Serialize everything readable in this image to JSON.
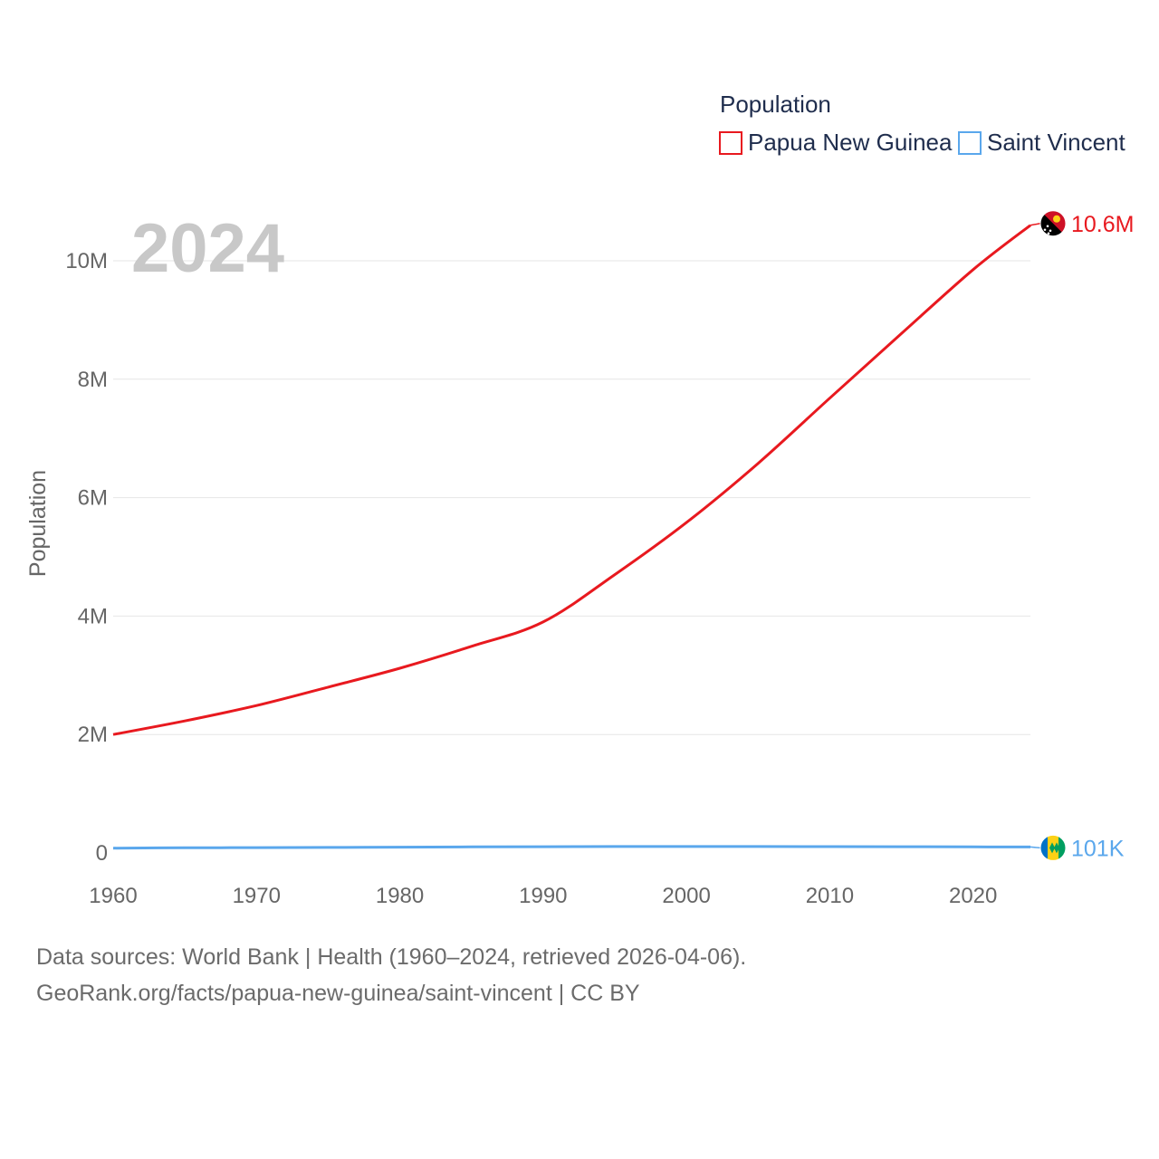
{
  "chart_data": {
    "type": "line",
    "title": "Population",
    "current_year_label": "2024",
    "xlabel": "",
    "ylabel": "Population",
    "xlim": [
      1960,
      2024
    ],
    "ylim": [
      0,
      10000000
    ],
    "x_ticks": [
      1960,
      1970,
      1980,
      1990,
      2000,
      2010,
      2020
    ],
    "x_tick_labels": [
      "1960",
      "1970",
      "1980",
      "1990",
      "2000",
      "2010",
      "2020"
    ],
    "y_ticks": [
      0,
      2000000,
      4000000,
      6000000,
      8000000,
      10000000
    ],
    "y_tick_labels": [
      "0",
      "2M",
      "4M",
      "6M",
      "8M",
      "10M"
    ],
    "grid": true,
    "legend": {
      "title": "Population",
      "placement": "top-right"
    },
    "series": [
      {
        "name": "Papua New Guinea",
        "color": "#e8191f",
        "end_label": "10.6M",
        "flag_icon": "papua-new-guinea-flag-icon",
        "x": [
          1960,
          1965,
          1970,
          1975,
          1980,
          1985,
          1990,
          1995,
          2000,
          2005,
          2010,
          2015,
          2020,
          2024
        ],
        "values": [
          2000000,
          2230000,
          2490000,
          2800000,
          3120000,
          3490000,
          3900000,
          4700000,
          5580000,
          6580000,
          7680000,
          8770000,
          9850000,
          10600000
        ]
      },
      {
        "name": "Saint Vincent",
        "color": "#5aa7ec",
        "end_label": "101K",
        "flag_icon": "saint-vincent-flag-icon",
        "x": [
          1960,
          1965,
          1970,
          1975,
          1980,
          1985,
          1990,
          1995,
          2000,
          2005,
          2010,
          2015,
          2020,
          2024
        ],
        "values": [
          81000,
          87000,
          90000,
          94000,
          98000,
          102000,
          106000,
          108000,
          108000,
          108000,
          107000,
          105000,
          103000,
          101000
        ]
      }
    ]
  },
  "footer": {
    "line1": "Data sources: World Bank | Health (1960–2024, retrieved 2026-04-06).",
    "line2": "GeoRank.org/facts/papua-new-guinea/saint-vincent | CC BY"
  },
  "colors": {
    "grid": "#e6e6e6",
    "tick_text": "#666666",
    "year_watermark": "#c8c8c8"
  }
}
